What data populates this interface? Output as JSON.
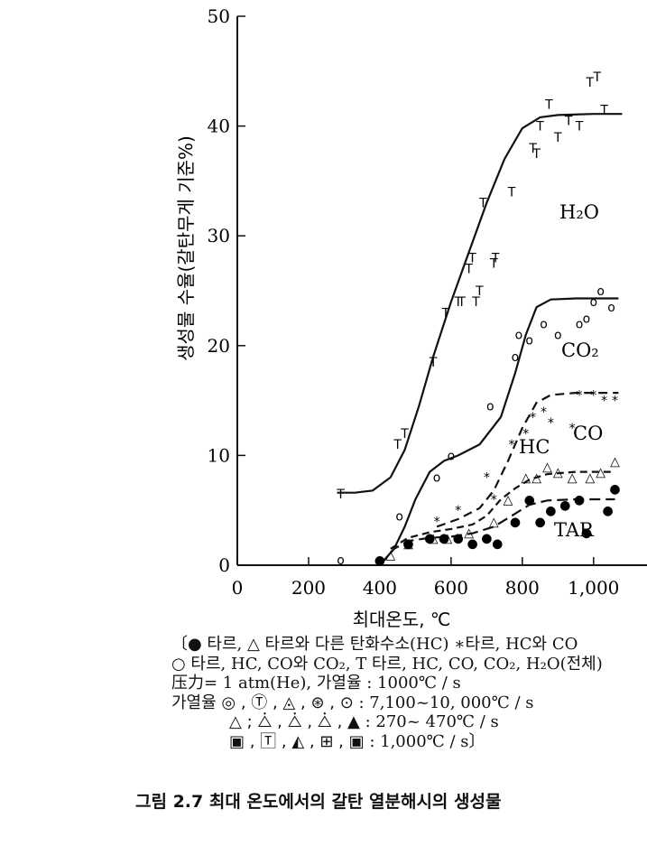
{
  "chart_data": {
    "type": "scatter",
    "xlabel": "최대온도, ℃",
    "ylabel": "생성물 수율(갈탄무게 기준%)",
    "xlim": [
      0,
      1150
    ],
    "ylim": [
      0,
      50
    ],
    "x_ticks": [
      0,
      200,
      400,
      600,
      800,
      1000
    ],
    "x_tick_labels": [
      "0",
      "200",
      "400",
      "600",
      "800",
      "1,000"
    ],
    "y_ticks": [
      0,
      10,
      20,
      30,
      40,
      50
    ],
    "y_tick_labels": [
      "0",
      "10",
      "20",
      "30",
      "40",
      "50"
    ],
    "grid": false,
    "series": [
      {
        "name": "H₂O",
        "marker": "T",
        "curve": [
          [
            280,
            6.6
          ],
          [
            330,
            6.6
          ],
          [
            380,
            6.8
          ],
          [
            430,
            8
          ],
          [
            470,
            10.5
          ],
          [
            510,
            14.5
          ],
          [
            550,
            19
          ],
          [
            600,
            24
          ],
          [
            650,
            28.5
          ],
          [
            700,
            33
          ],
          [
            750,
            37
          ],
          [
            800,
            39.8
          ],
          [
            850,
            40.8
          ],
          [
            900,
            41
          ],
          [
            1000,
            41.1
          ],
          [
            1080,
            41.1
          ]
        ],
        "points": [
          [
            290,
            6.5
          ],
          [
            450,
            11
          ],
          [
            470,
            12
          ],
          [
            550,
            18.5
          ],
          [
            585,
            23
          ],
          [
            620,
            24
          ],
          [
            630,
            24
          ],
          [
            650,
            27
          ],
          [
            660,
            28
          ],
          [
            670,
            24
          ],
          [
            680,
            25
          ],
          [
            690,
            33
          ],
          [
            720,
            27.5
          ],
          [
            725,
            28
          ],
          [
            770,
            34
          ],
          [
            830,
            38
          ],
          [
            840,
            37.5
          ],
          [
            850,
            40
          ],
          [
            875,
            42
          ],
          [
            900,
            39
          ],
          [
            930,
            40.5
          ],
          [
            960,
            40
          ],
          [
            990,
            44
          ],
          [
            1010,
            44.5
          ],
          [
            1030,
            41.5
          ]
        ]
      },
      {
        "name": "CO₂",
        "marker": "o",
        "curve": [
          [
            400,
            0
          ],
          [
            440,
            1.5
          ],
          [
            470,
            3.5
          ],
          [
            500,
            6
          ],
          [
            540,
            8.5
          ],
          [
            580,
            9.5
          ],
          [
            620,
            10
          ],
          [
            680,
            11
          ],
          [
            740,
            13.5
          ],
          [
            780,
            17.5
          ],
          [
            810,
            21
          ],
          [
            840,
            23.5
          ],
          [
            880,
            24.2
          ],
          [
            950,
            24.3
          ],
          [
            1070,
            24.3
          ]
        ],
        "points": [
          [
            290,
            0.5
          ],
          [
            455,
            4.5
          ],
          [
            560,
            8
          ],
          [
            600,
            10
          ],
          [
            710,
            14.5
          ],
          [
            780,
            19
          ],
          [
            790,
            21
          ],
          [
            820,
            20.5
          ],
          [
            860,
            22
          ],
          [
            900,
            21
          ],
          [
            960,
            22
          ],
          [
            980,
            22.5
          ],
          [
            1000,
            24
          ],
          [
            1020,
            25
          ],
          [
            1050,
            23.5
          ]
        ]
      },
      {
        "name": "CO",
        "marker": "*",
        "curve": [
          [
            560,
            3.5
          ],
          [
            620,
            4.2
          ],
          [
            680,
            5.2
          ],
          [
            720,
            6.8
          ],
          [
            760,
            9.5
          ],
          [
            800,
            12.5
          ],
          [
            840,
            14.8
          ],
          [
            880,
            15.5
          ],
          [
            950,
            15.7
          ],
          [
            1070,
            15.7
          ]
        ],
        "points": [
          [
            560,
            4
          ],
          [
            620,
            5
          ],
          [
            700,
            8
          ],
          [
            720,
            6
          ],
          [
            770,
            11
          ],
          [
            810,
            12
          ],
          [
            830,
            13.5
          ],
          [
            860,
            14
          ],
          [
            880,
            13
          ],
          [
            940,
            12.5
          ],
          [
            960,
            15.5
          ],
          [
            1000,
            15.5
          ],
          [
            1030,
            15
          ],
          [
            1060,
            15
          ]
        ]
      },
      {
        "name": "HC",
        "marker": "△",
        "curve": [
          [
            430,
            1.5
          ],
          [
            480,
            2.5
          ],
          [
            540,
            3
          ],
          [
            600,
            3.3
          ],
          [
            660,
            3.7
          ],
          [
            700,
            4.5
          ],
          [
            740,
            6
          ],
          [
            780,
            7
          ],
          [
            820,
            7.8
          ],
          [
            870,
            8.3
          ],
          [
            950,
            8.5
          ],
          [
            1060,
            8.5
          ]
        ],
        "points": [
          [
            430,
            1
          ],
          [
            480,
            2
          ],
          [
            550,
            2.5
          ],
          [
            590,
            2.5
          ],
          [
            650,
            3
          ],
          [
            720,
            4
          ],
          [
            760,
            6
          ],
          [
            810,
            8
          ],
          [
            840,
            8
          ],
          [
            870,
            9
          ],
          [
            900,
            8.5
          ],
          [
            940,
            8
          ],
          [
            990,
            8
          ],
          [
            1020,
            8.5
          ],
          [
            1060,
            9.5
          ]
        ]
      },
      {
        "name": "TAR",
        "marker": "●",
        "curve": [
          [
            400,
            0
          ],
          [
            440,
            1.5
          ],
          [
            480,
            2.2
          ],
          [
            540,
            2.5
          ],
          [
            600,
            2.6
          ],
          [
            660,
            2.9
          ],
          [
            720,
            3.5
          ],
          [
            770,
            4.5
          ],
          [
            820,
            5.5
          ],
          [
            870,
            5.9
          ],
          [
            950,
            6
          ],
          [
            1060,
            6
          ]
        ],
        "points": [
          [
            400,
            0.5
          ],
          [
            480,
            2
          ],
          [
            540,
            2.5
          ],
          [
            580,
            2.5
          ],
          [
            620,
            2.5
          ],
          [
            660,
            2
          ],
          [
            700,
            2.5
          ],
          [
            730,
            2
          ],
          [
            780,
            4
          ],
          [
            820,
            6
          ],
          [
            850,
            4
          ],
          [
            880,
            5
          ],
          [
            920,
            5.5
          ],
          [
            960,
            6
          ],
          [
            980,
            3
          ],
          [
            1040,
            5
          ],
          [
            1060,
            7
          ]
        ]
      }
    ]
  },
  "legend": {
    "line1": "〔● 타르, △ 타르와 다른 탄화수소(HC)  ∗타르, HC와 CO",
    "line2": "○ 타르, HC, CO와 CO₂, T 타르, HC, CO, CO₂, H₂O(전체)",
    "line3": "压力= 1 atm(He), 가열율 : 1000℃ / s",
    "line4_symbols": "가열율 ◎ , Ⓣ , ◬ , ⊛ , ⊙",
    "line4_value": ": 7,100~10, 000℃ / s",
    "line5_symbols": "△ ; ⧊ , ⧊ , ⧊ , ▲",
    "line5_value": ": 270~ 470℃ / s",
    "line6_symbols": "▣ , 🅃 , ◭ , ⊞ , ▣",
    "line6_value": ": 1,000℃ / s〕"
  },
  "caption": "그림 2.7  최대 온도에서의 갈탄 열분해시의 생성물"
}
